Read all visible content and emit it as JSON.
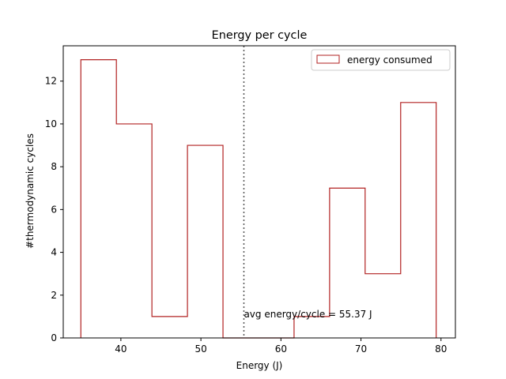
{
  "chart_data": {
    "type": "histogram",
    "title": "Energy per cycle",
    "xlabel": "Energy (J)",
    "ylabel": "#thermodynamic cycles",
    "xlim": [
      32.8,
      81.8
    ],
    "ylim": [
      0,
      13.65
    ],
    "xticks": [
      40,
      50,
      60,
      70,
      80
    ],
    "yticks": [
      0,
      2,
      4,
      6,
      8,
      10,
      12
    ],
    "bin_edges": [
      35.0,
      39.44,
      43.88,
      48.32,
      52.76,
      57.2,
      61.64,
      66.08,
      70.52,
      74.96,
      79.4
    ],
    "counts": [
      13,
      10,
      1,
      9,
      0,
      0,
      1,
      7,
      3,
      11
    ],
    "series": [
      {
        "name": "energy consumed",
        "color": "#b22222"
      }
    ],
    "mean_line": {
      "x": 55.37,
      "style": "dotted",
      "color": "#555555"
    },
    "annotation": {
      "text": "avg energy/cycle = 55.37 J",
      "x": 55.37,
      "y": 1.1
    },
    "legend_position": "top-right",
    "grid": false
  }
}
